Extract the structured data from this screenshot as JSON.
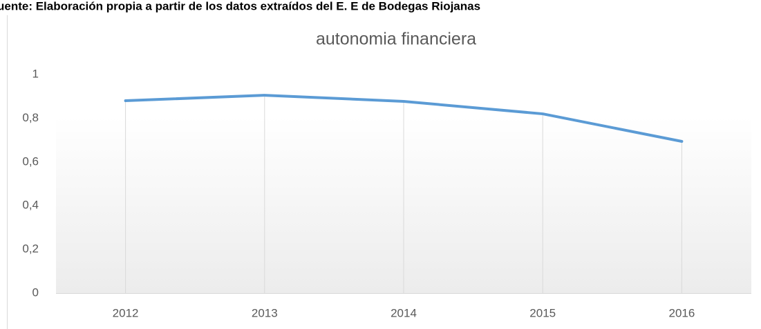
{
  "caption": "uente: Elaboración propia a partir de los datos extraídos del E. E de Bodegas Riojanas",
  "chart_data": {
    "type": "line",
    "title": "autonomia financiera",
    "categories": [
      "2012",
      "2013",
      "2014",
      "2015",
      "2016"
    ],
    "series": [
      {
        "name": "autonomia financiera",
        "color": "#5b9bd5",
        "values": [
          0.88,
          0.905,
          0.877,
          0.82,
          0.694
        ]
      }
    ],
    "ylim": [
      0,
      1
    ],
    "yticks": [
      0,
      {
        "value": 0.2,
        "label": "0,2"
      },
      {
        "value": 0.4,
        "label": "0,4"
      },
      {
        "value": 0.6,
        "label": "0,6"
      },
      {
        "value": 0.8,
        "label": "0,8"
      },
      1
    ],
    "drop_lines": true
  }
}
